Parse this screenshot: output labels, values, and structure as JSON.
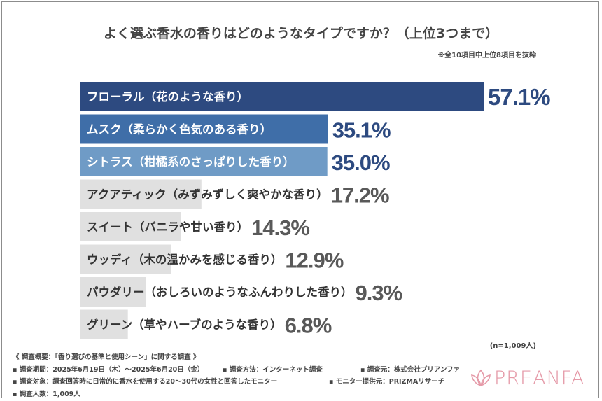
{
  "title": "よく選ぶ香水の香りはどのようなタイプですか？（上位3つまで）",
  "note": "※全10項目中上位8項目を抜粋",
  "sample_size": "(n=1,009人)",
  "footer": {
    "overview": "《 調査概要：「香り選びの基準と使用シーン」に関する調査 》",
    "period": "▪ 調査期間：2025年6月19日（木）〜2025年6月20日（金）",
    "method": "▪ 調査方法：インターネット調査",
    "organizer": "▪ 調査元：株式会社プリアンファ",
    "target": "▪ 調査対象：調査回答時に日常的に香水を使用する20〜30代の女性と回答したモニター",
    "provider": "▪ モニター提供元：PRIZMAリサーチ",
    "count": "▪ 調査人数：1,009人"
  },
  "logo": {
    "text": "PREANFA",
    "icon": "lotus-icon",
    "color": "#e59aa8"
  },
  "colors": {
    "bar_top1": "#2d4a80",
    "bar_top2": "#3f6ea8",
    "bar_top3": "#6f9bc6",
    "bar_other": "#e0e0e0",
    "value_top": "#2d4a80",
    "value_other": "#595959",
    "label_top": "#ffffff",
    "label_other": "#333333"
  },
  "chart_data": {
    "type": "bar",
    "orientation": "horizontal",
    "title": "よく選ぶ香水の香りはどのようなタイプですか？（上位3つまで）",
    "unit": "%",
    "categories": [
      "フローラル（花のような香り）",
      "ムスク（柔らかく色気のある香り）",
      "シトラス（柑橘系のさっぱりした香り）",
      "アクアティック（みずみずしく爽やかな香り）",
      "スイート（バニラや甘い香り）",
      "ウッディ（木の温かみを感じる香り）",
      "パウダリー（おしろいのようなふんわりした香り）",
      "グリーン（草やハーブのような香り）"
    ],
    "values": [
      57.1,
      35.1,
      35.0,
      17.2,
      14.3,
      12.9,
      9.3,
      6.8
    ],
    "value_labels": [
      "57.1%",
      "35.1%",
      "35.0%",
      "17.2%",
      "14.3%",
      "12.9%",
      "9.3%",
      "6.8%"
    ],
    "xlim": [
      0,
      57.1
    ],
    "grid": false,
    "legend": "none"
  }
}
